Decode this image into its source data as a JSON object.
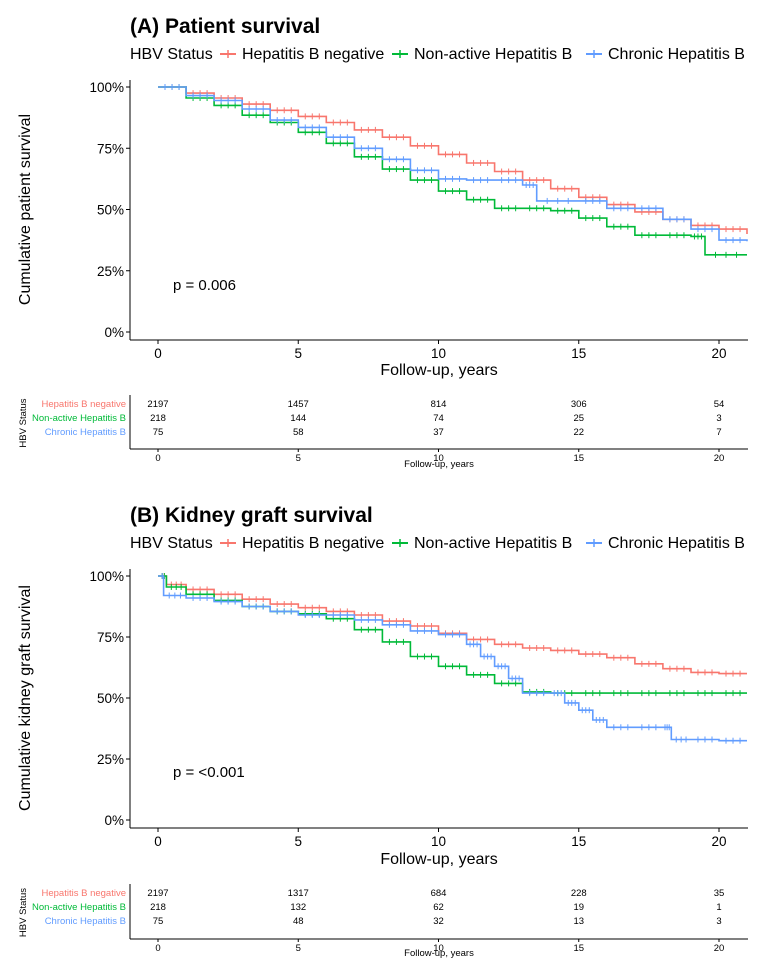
{
  "chart_data": [
    {
      "type": "line",
      "subtype": "kaplan-meier",
      "title": "(A) Patient survival",
      "legend_title": "HBV Status",
      "xlabel": "Follow-up, years",
      "ylabel": "Cumulative patient survival",
      "x_ticks": [
        "0",
        "5",
        "10",
        "15",
        "20"
      ],
      "y_ticks": [
        "0%",
        "25%",
        "50%",
        "75%",
        "100%"
      ],
      "xlim": [
        0,
        21
      ],
      "ylim": [
        0,
        1
      ],
      "p_value": "p = 0.006",
      "series": [
        {
          "name": "Hepatitis B negative",
          "color": "#F8766D",
          "x": [
            0,
            1,
            2,
            3,
            4,
            5,
            6,
            7,
            8,
            9,
            10,
            11,
            12,
            13,
            14,
            15,
            16,
            17,
            18,
            19,
            20,
            21
          ],
          "y": [
            1.0,
            0.975,
            0.955,
            0.93,
            0.905,
            0.88,
            0.855,
            0.825,
            0.795,
            0.76,
            0.725,
            0.69,
            0.655,
            0.62,
            0.585,
            0.55,
            0.52,
            0.49,
            0.46,
            0.435,
            0.42,
            0.4
          ]
        },
        {
          "name": "Non-active Hepatitis B",
          "color": "#00BA38",
          "x": [
            0,
            1,
            2,
            3,
            4,
            5,
            6,
            7,
            8,
            9,
            10,
            11,
            12,
            13,
            14,
            15,
            16,
            17,
            18,
            19,
            19.5,
            21
          ],
          "y": [
            1.0,
            0.955,
            0.925,
            0.885,
            0.855,
            0.815,
            0.77,
            0.715,
            0.665,
            0.62,
            0.575,
            0.54,
            0.505,
            0.505,
            0.495,
            0.465,
            0.43,
            0.395,
            0.395,
            0.39,
            0.315,
            0.315
          ]
        },
        {
          "name": "Chronic Hepatitis B",
          "color": "#619CFF",
          "x": [
            0,
            1,
            2,
            3,
            4,
            5,
            6,
            7,
            8,
            9,
            10,
            11,
            12,
            13,
            13.5,
            15,
            16,
            17,
            18,
            19,
            20,
            21
          ],
          "y": [
            1.0,
            0.965,
            0.945,
            0.91,
            0.865,
            0.835,
            0.795,
            0.75,
            0.705,
            0.66,
            0.625,
            0.62,
            0.62,
            0.6,
            0.535,
            0.535,
            0.505,
            0.505,
            0.46,
            0.42,
            0.375,
            0.37
          ]
        }
      ],
      "risk_table": {
        "ylabel": "HBV Status",
        "xlabel": "Follow-up, years",
        "rows": [
          {
            "name": "Hepatitis B negative",
            "values": [
              "2197",
              "1457",
              "814",
              "306",
              "54"
            ]
          },
          {
            "name": "Non-active Hepatitis B",
            "values": [
              "218",
              "144",
              "74",
              "25",
              "3"
            ]
          },
          {
            "name": "Chronic Hepatitis B",
            "values": [
              "75",
              "58",
              "37",
              "22",
              "7"
            ]
          }
        ]
      }
    },
    {
      "type": "line",
      "subtype": "kaplan-meier",
      "title": "(B) Kidney graft survival",
      "legend_title": "HBV Status",
      "xlabel": "Follow-up, years",
      "ylabel": "Cumulative kidney graft survival",
      "x_ticks": [
        "0",
        "5",
        "10",
        "15",
        "20"
      ],
      "y_ticks": [
        "0%",
        "25%",
        "50%",
        "75%",
        "100%"
      ],
      "xlim": [
        0,
        21
      ],
      "ylim": [
        0,
        1
      ],
      "p_value": "p = <0.001",
      "series": [
        {
          "name": "Hepatitis B negative",
          "color": "#F8766D",
          "x": [
            0,
            0.3,
            1,
            2,
            3,
            4,
            5,
            6,
            7,
            8,
            9,
            10,
            11,
            12,
            13,
            14,
            15,
            16,
            17,
            18,
            19,
            20,
            21
          ],
          "y": [
            1.0,
            0.965,
            0.945,
            0.925,
            0.905,
            0.885,
            0.87,
            0.855,
            0.84,
            0.815,
            0.795,
            0.765,
            0.74,
            0.72,
            0.705,
            0.695,
            0.68,
            0.665,
            0.64,
            0.62,
            0.605,
            0.6,
            0.6
          ]
        },
        {
          "name": "Non-active Hepatitis B",
          "color": "#00BA38",
          "x": [
            0,
            0.3,
            1,
            2,
            3,
            4,
            5,
            6,
            7,
            8,
            9,
            10,
            11,
            12,
            13,
            14,
            15,
            16,
            17,
            18,
            19,
            20,
            21
          ],
          "y": [
            1.0,
            0.955,
            0.925,
            0.9,
            0.875,
            0.855,
            0.845,
            0.825,
            0.78,
            0.73,
            0.67,
            0.63,
            0.595,
            0.56,
            0.525,
            0.52,
            0.52,
            0.52,
            0.52,
            0.52,
            0.52,
            0.52,
            0.52
          ]
        },
        {
          "name": "Chronic Hepatitis B",
          "color": "#619CFF",
          "x": [
            0,
            0.2,
            1,
            2,
            3,
            4,
            5,
            6,
            7,
            8,
            9,
            10,
            11,
            11.5,
            12,
            12.5,
            13,
            14,
            14.5,
            15,
            15.5,
            16,
            17,
            18,
            18.3,
            19,
            20,
            21
          ],
          "y": [
            1.0,
            0.92,
            0.91,
            0.895,
            0.875,
            0.855,
            0.84,
            0.84,
            0.82,
            0.8,
            0.775,
            0.76,
            0.72,
            0.67,
            0.63,
            0.58,
            0.52,
            0.52,
            0.48,
            0.45,
            0.41,
            0.38,
            0.38,
            0.38,
            0.33,
            0.33,
            0.325,
            0.325
          ]
        }
      ],
      "risk_table": {
        "ylabel": "HBV Status",
        "xlabel": "Follow-up, years",
        "rows": [
          {
            "name": "Hepatitis B negative",
            "values": [
              "2197",
              "1317",
              "684",
              "228",
              "35"
            ]
          },
          {
            "name": "Non-active Hepatitis B",
            "values": [
              "218",
              "132",
              "62",
              "19",
              "1"
            ]
          },
          {
            "name": "Chronic Hepatitis B",
            "values": [
              "75",
              "48",
              "32",
              "13",
              "3"
            ]
          }
        ]
      }
    }
  ]
}
